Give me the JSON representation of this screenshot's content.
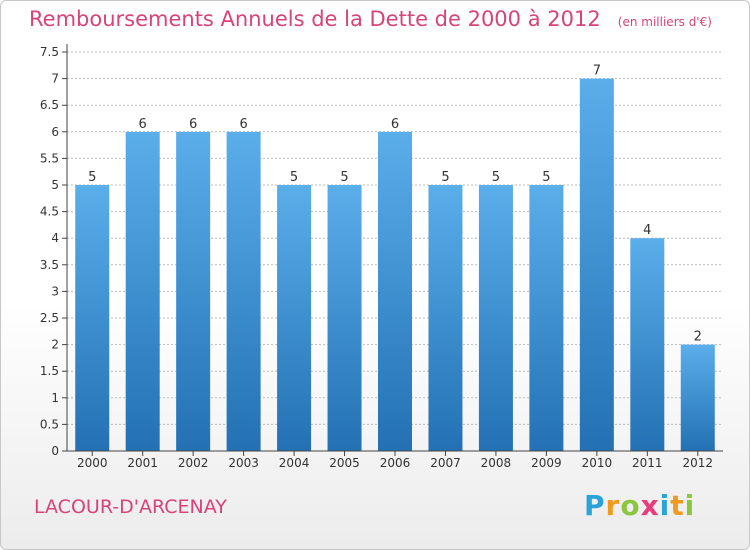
{
  "header": {
    "title": "Remboursements Annuels de la Dette de 2000 à 2012",
    "subtitle": "(en milliers d'€)"
  },
  "footer": {
    "commune": "LACOUR-D'ARCENAY",
    "logo_text": "Proxiti",
    "logo_colors": [
      "#2aa3d8",
      "#f29a1f",
      "#8cc63f",
      "#e83c7b",
      "#2aa3d8",
      "#f29a1f",
      "#8cc63f"
    ]
  },
  "colors": {
    "accent": "#d7437a",
    "bar_light": "#5aaeea",
    "bar_dark": "#2371b4",
    "grid": "#bbbbbb",
    "axis": "#444444"
  },
  "chart_data": {
    "type": "bar",
    "title": "Remboursements Annuels de la Dette de 2000 à 2012",
    "subtitle": "(en milliers d'€)",
    "categories": [
      "2000",
      "2001",
      "2002",
      "2003",
      "2004",
      "2005",
      "2006",
      "2007",
      "2008",
      "2009",
      "2010",
      "2011",
      "2012"
    ],
    "values": [
      5,
      6,
      6,
      6,
      5,
      5,
      6,
      5,
      5,
      5,
      7,
      4,
      2
    ],
    "data_labels": [
      "5",
      "6",
      "6",
      "6",
      "5",
      "5",
      "6",
      "5",
      "5",
      "5",
      "7",
      "4",
      "2"
    ],
    "ylim": [
      0,
      7.5
    ],
    "yticks": [
      "0",
      "0.5",
      "1",
      "1.5",
      "2",
      "2.5",
      "3",
      "3.5",
      "4",
      "4.5",
      "5",
      "5.5",
      "6",
      "6.5",
      "7",
      "7.5"
    ],
    "grid": true,
    "xlabel": "",
    "ylabel": ""
  }
}
